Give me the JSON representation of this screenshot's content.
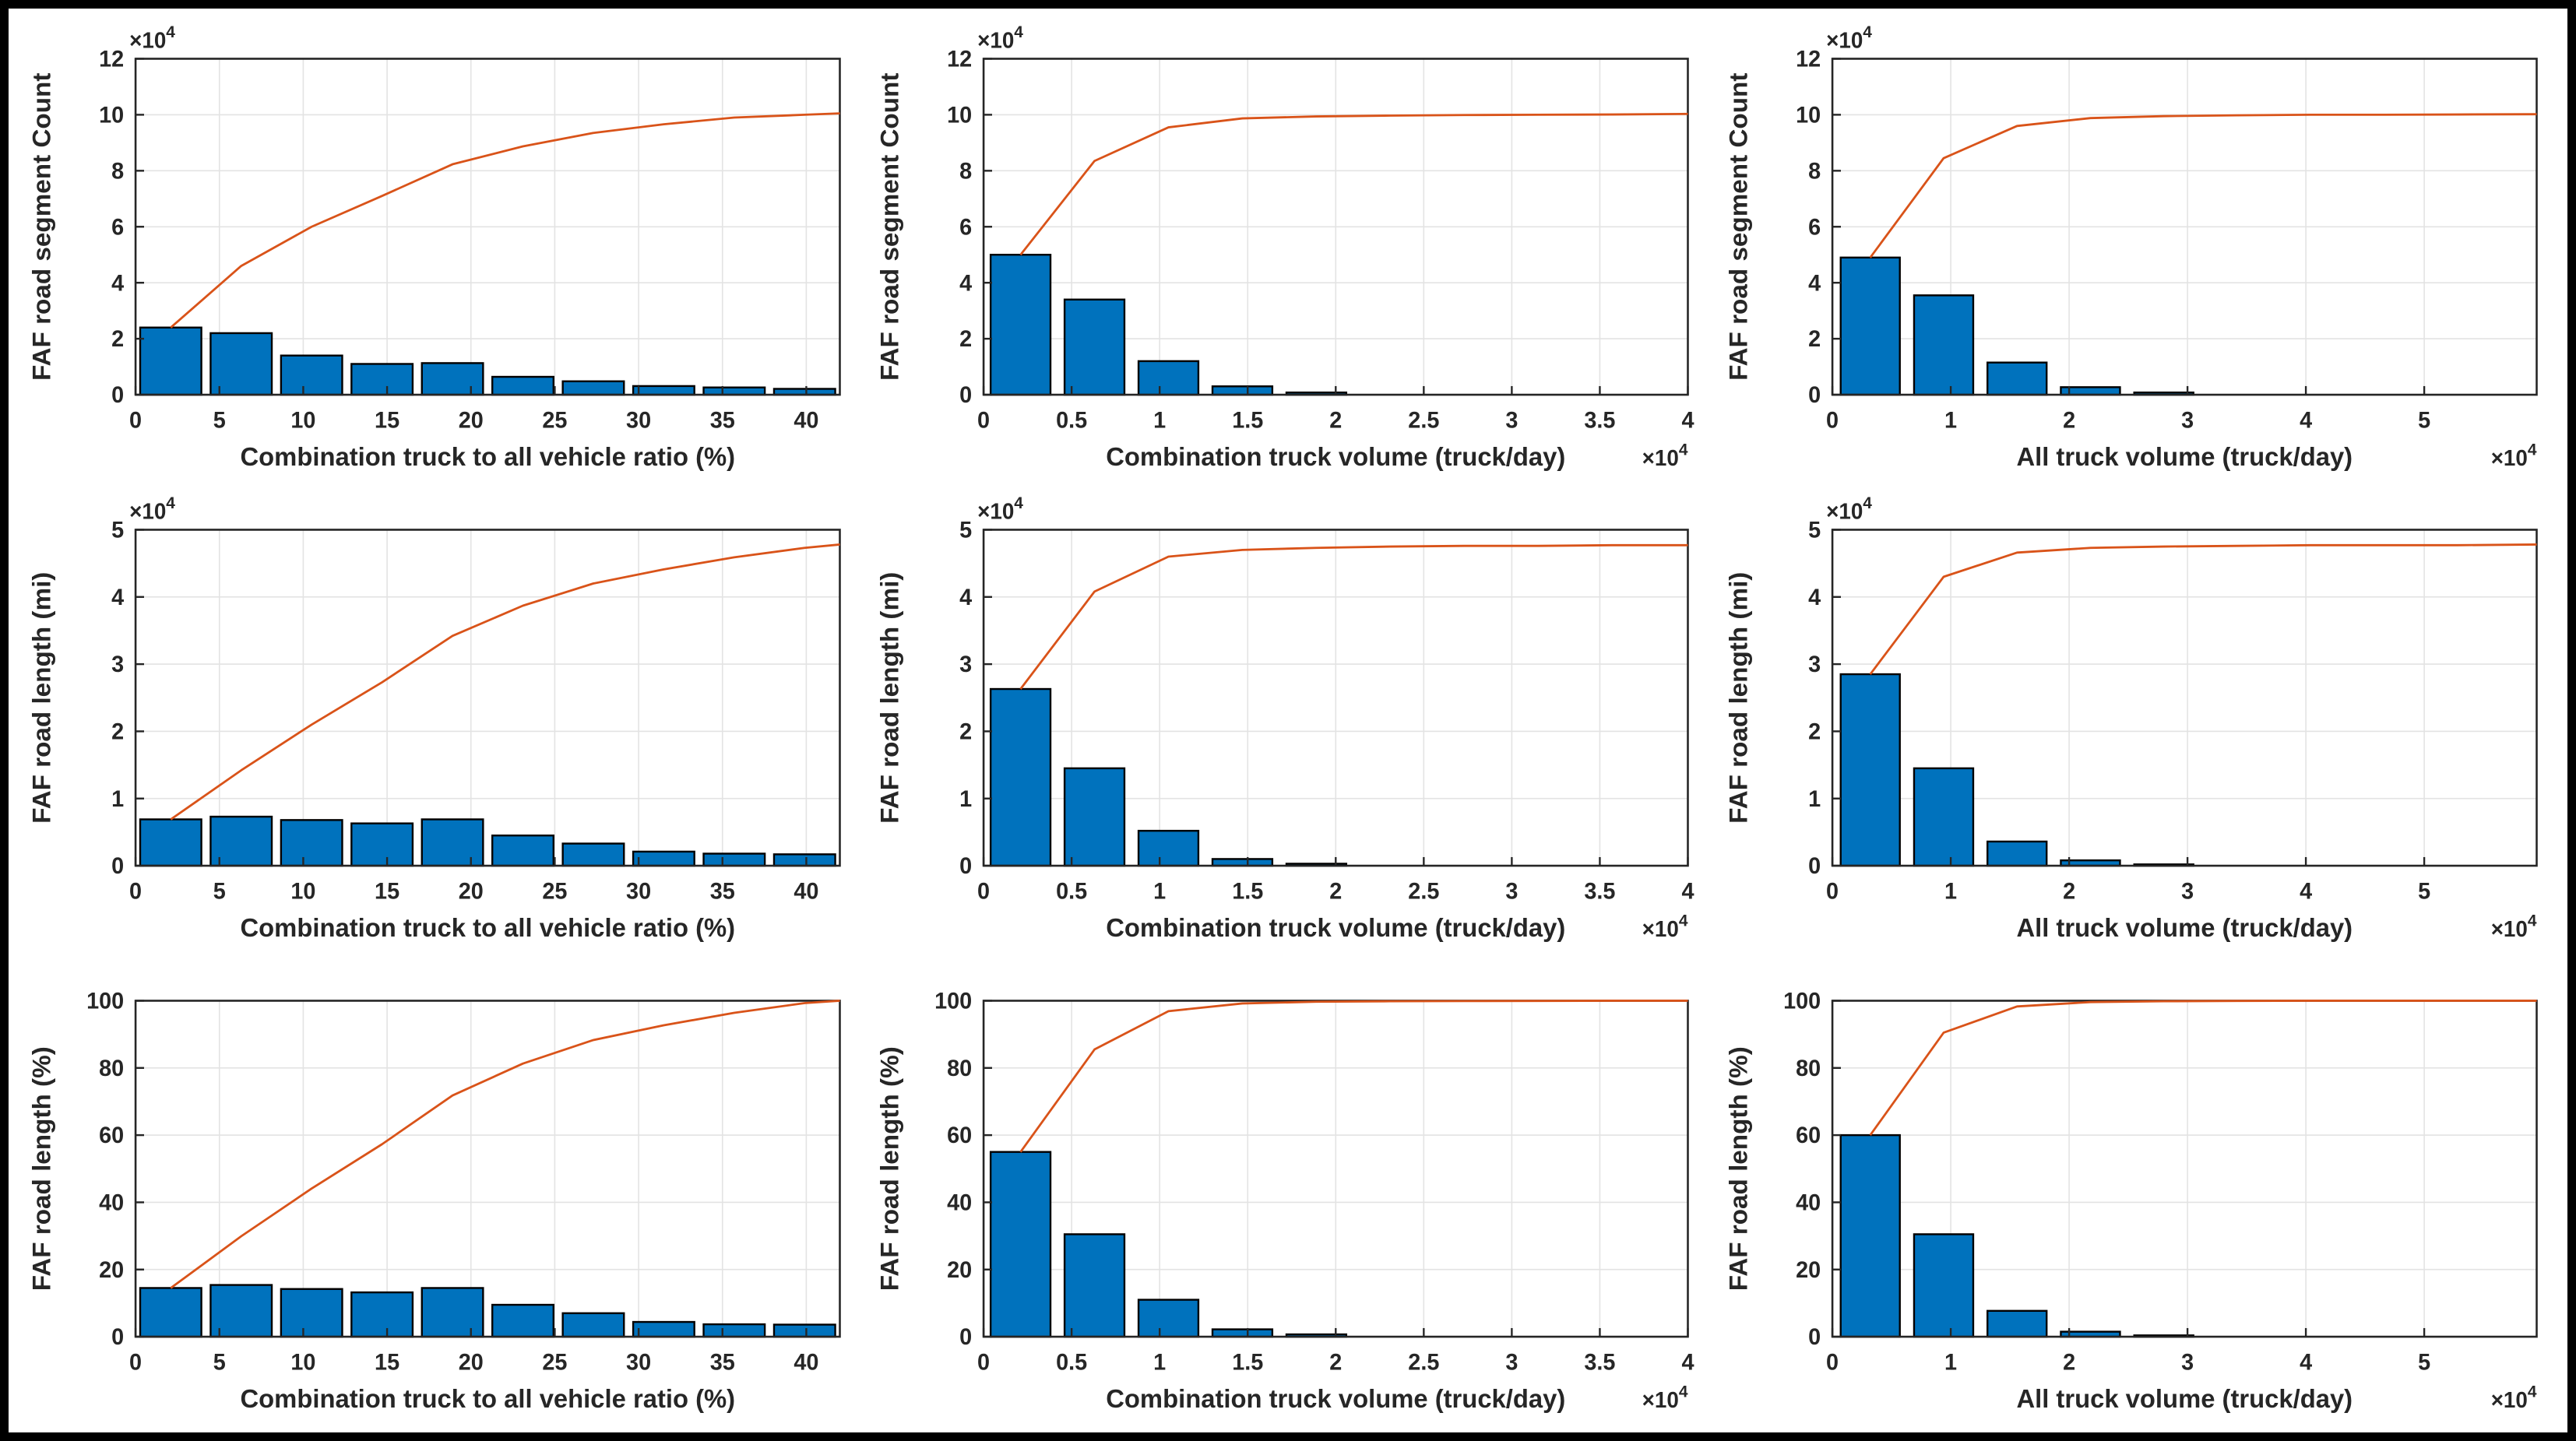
{
  "canvas": {
    "background": "#FFFFFF",
    "border_color": "#000000"
  },
  "palette": {
    "bar_fill": "#0072BD",
    "bar_edge": "#000000",
    "cumulative_line": "#D95319",
    "grid_color": "#E3E3E3",
    "axis_color": "#262626",
    "text_color": "#262626"
  },
  "chart_data": [
    {
      "type": "bar",
      "title": "",
      "xlabel": "Combination truck to all vehicle ratio (%)",
      "ylabel": "FAF road segment Count",
      "y_scale_exponent": 4,
      "x_scale_exponent": null,
      "xlim": [
        0,
        42
      ],
      "ylim": [
        0,
        12
      ],
      "xticks": [
        0,
        5,
        10,
        15,
        20,
        25,
        30,
        35,
        40
      ],
      "xtick_labels": [
        "0",
        "5",
        "10",
        "15",
        "20",
        "25",
        "30",
        "35",
        "40"
      ],
      "yticks": [
        0,
        2,
        4,
        6,
        8,
        10,
        12
      ],
      "ytick_labels": [
        "0",
        "2",
        "4",
        "6",
        "8",
        "10",
        "12"
      ],
      "grid": true,
      "legend_position": "none",
      "bar_width": 3.65,
      "bars": {
        "centers": [
          2.1,
          6.3,
          10.5,
          14.7,
          18.9,
          23.1,
          27.3,
          31.5,
          35.7,
          39.9
        ],
        "values": [
          2.4,
          2.2,
          1.4,
          1.1,
          1.13,
          0.64,
          0.48,
          0.31,
          0.26,
          0.21
        ]
      },
      "line": {
        "name": "cumulative",
        "x": [
          2.1,
          6.3,
          10.5,
          14.7,
          18.9,
          23.1,
          27.3,
          31.5,
          35.7,
          39.9,
          42
        ],
        "y": [
          2.4,
          4.6,
          6.0,
          7.1,
          8.23,
          8.87,
          9.35,
          9.66,
          9.9,
          10.0,
          10.05
        ]
      }
    },
    {
      "type": "bar",
      "title": "",
      "xlabel": "Combination truck volume (truck/day)",
      "ylabel": "FAF road segment Count",
      "y_scale_exponent": 4,
      "x_scale_exponent": 4,
      "xlim": [
        0,
        4
      ],
      "ylim": [
        0,
        12
      ],
      "xticks": [
        0,
        0.5,
        1,
        1.5,
        2,
        2.5,
        3,
        3.5,
        4
      ],
      "xtick_labels": [
        "0",
        "0.5",
        "1",
        "1.5",
        "2",
        "2.5",
        "3",
        "3.5",
        "4"
      ],
      "yticks": [
        0,
        2,
        4,
        6,
        8,
        10,
        12
      ],
      "ytick_labels": [
        "0",
        "2",
        "4",
        "6",
        "8",
        "10",
        "12"
      ],
      "grid": true,
      "legend_position": "none",
      "bar_width": 0.34,
      "bars": {
        "centers": [
          0.21,
          0.63,
          1.05,
          1.47,
          1.89
        ],
        "values": [
          5.0,
          3.4,
          1.2,
          0.3,
          0.08
        ]
      },
      "line": {
        "name": "cumulative",
        "x": [
          0.21,
          0.63,
          1.05,
          1.47,
          1.89,
          2.31,
          2.73,
          3.15,
          3.57,
          4.0
        ],
        "y": [
          5.0,
          8.35,
          9.55,
          9.87,
          9.94,
          9.97,
          9.99,
          10.0,
          10.01,
          10.03
        ]
      }
    },
    {
      "type": "bar",
      "title": "",
      "xlabel": "All truck volume (truck/day)",
      "ylabel": "FAF road segment Count",
      "y_scale_exponent": 4,
      "x_scale_exponent": 4,
      "xlim": [
        0,
        5.95
      ],
      "ylim": [
        0,
        12
      ],
      "xticks": [
        0,
        1,
        2,
        3,
        4,
        5
      ],
      "xtick_labels": [
        "0",
        "1",
        "2",
        "3",
        "4",
        "5"
      ],
      "yticks": [
        0,
        2,
        4,
        6,
        8,
        10,
        12
      ],
      "ytick_labels": [
        "0",
        "2",
        "4",
        "6",
        "8",
        "10",
        "12"
      ],
      "grid": true,
      "legend_position": "none",
      "bar_width": 0.5,
      "bars": {
        "centers": [
          0.32,
          0.94,
          1.56,
          2.18,
          2.8
        ],
        "values": [
          4.9,
          3.55,
          1.15,
          0.27,
          0.08
        ]
      },
      "line": {
        "name": "cumulative",
        "x": [
          0.32,
          0.94,
          1.56,
          2.18,
          2.8,
          3.42,
          4.04,
          4.66,
          5.28,
          5.95
        ],
        "y": [
          4.9,
          8.45,
          9.6,
          9.88,
          9.95,
          9.98,
          10.0,
          10.0,
          10.01,
          10.02
        ]
      }
    },
    {
      "type": "bar",
      "title": "",
      "xlabel": "Combination truck to all vehicle ratio (%)",
      "ylabel": "FAF road length (mi)",
      "y_scale_exponent": 4,
      "x_scale_exponent": null,
      "xlim": [
        0,
        42
      ],
      "ylim": [
        0,
        5
      ],
      "xticks": [
        0,
        5,
        10,
        15,
        20,
        25,
        30,
        35,
        40
      ],
      "xtick_labels": [
        "0",
        "5",
        "10",
        "15",
        "20",
        "25",
        "30",
        "35",
        "40"
      ],
      "yticks": [
        0,
        1,
        2,
        3,
        4,
        5
      ],
      "ytick_labels": [
        "0",
        "1",
        "2",
        "3",
        "4",
        "5"
      ],
      "grid": true,
      "legend_position": "none",
      "bar_width": 3.65,
      "bars": {
        "centers": [
          2.1,
          6.3,
          10.5,
          14.7,
          18.9,
          23.1,
          27.3,
          31.5,
          35.7,
          39.9
        ],
        "values": [
          0.69,
          0.73,
          0.68,
          0.63,
          0.69,
          0.45,
          0.33,
          0.21,
          0.18,
          0.17
        ]
      },
      "line": {
        "name": "cumulative",
        "x": [
          2.1,
          6.3,
          10.5,
          14.7,
          18.9,
          23.1,
          27.3,
          31.5,
          35.7,
          39.9,
          42
        ],
        "y": [
          0.69,
          1.42,
          2.1,
          2.73,
          3.42,
          3.87,
          4.2,
          4.41,
          4.59,
          4.73,
          4.78
        ]
      }
    },
    {
      "type": "bar",
      "title": "",
      "xlabel": "Combination truck volume (truck/day)",
      "ylabel": "FAF road length (mi)",
      "y_scale_exponent": 4,
      "x_scale_exponent": 4,
      "xlim": [
        0,
        4
      ],
      "ylim": [
        0,
        5
      ],
      "xticks": [
        0,
        0.5,
        1,
        1.5,
        2,
        2.5,
        3,
        3.5,
        4
      ],
      "xtick_labels": [
        "0",
        "0.5",
        "1",
        "1.5",
        "2",
        "2.5",
        "3",
        "3.5",
        "4"
      ],
      "yticks": [
        0,
        1,
        2,
        3,
        4,
        5
      ],
      "ytick_labels": [
        "0",
        "1",
        "2",
        "3",
        "4",
        "5"
      ],
      "grid": true,
      "legend_position": "none",
      "bar_width": 0.34,
      "bars": {
        "centers": [
          0.21,
          0.63,
          1.05,
          1.47,
          1.89
        ],
        "values": [
          2.63,
          1.45,
          0.52,
          0.1,
          0.03
        ]
      },
      "line": {
        "name": "cumulative",
        "x": [
          0.21,
          0.63,
          1.05,
          1.47,
          1.89,
          2.31,
          2.73,
          3.15,
          3.57,
          4.0
        ],
        "y": [
          2.63,
          4.08,
          4.6,
          4.7,
          4.73,
          4.75,
          4.76,
          4.76,
          4.77,
          4.77
        ]
      }
    },
    {
      "type": "bar",
      "title": "",
      "xlabel": "All truck volume (truck/day)",
      "ylabel": "FAF road length (mi)",
      "y_scale_exponent": 4,
      "x_scale_exponent": 4,
      "xlim": [
        0,
        5.95
      ],
      "ylim": [
        0,
        5
      ],
      "xticks": [
        0,
        1,
        2,
        3,
        4,
        5
      ],
      "xtick_labels": [
        "0",
        "1",
        "2",
        "3",
        "4",
        "5"
      ],
      "yticks": [
        0,
        1,
        2,
        3,
        4,
        5
      ],
      "ytick_labels": [
        "0",
        "1",
        "2",
        "3",
        "4",
        "5"
      ],
      "grid": true,
      "legend_position": "none",
      "bar_width": 0.5,
      "bars": {
        "centers": [
          0.32,
          0.94,
          1.56,
          2.18,
          2.8
        ],
        "values": [
          2.85,
          1.45,
          0.36,
          0.08,
          0.02
        ]
      },
      "line": {
        "name": "cumulative",
        "x": [
          0.32,
          0.94,
          1.56,
          2.18,
          2.8,
          3.42,
          4.04,
          4.66,
          5.28,
          5.95
        ],
        "y": [
          2.85,
          4.3,
          4.66,
          4.73,
          4.75,
          4.76,
          4.77,
          4.77,
          4.77,
          4.78
        ]
      }
    },
    {
      "type": "bar",
      "title": "",
      "xlabel": "Combination truck to all vehicle ratio (%)",
      "ylabel": "FAF road length (%)",
      "y_scale_exponent": null,
      "x_scale_exponent": null,
      "xlim": [
        0,
        42
      ],
      "ylim": [
        0,
        100
      ],
      "xticks": [
        0,
        5,
        10,
        15,
        20,
        25,
        30,
        35,
        40
      ],
      "xtick_labels": [
        "0",
        "5",
        "10",
        "15",
        "20",
        "25",
        "30",
        "35",
        "40"
      ],
      "yticks": [
        0,
        20,
        40,
        60,
        80,
        100
      ],
      "ytick_labels": [
        "0",
        "20",
        "40",
        "60",
        "80",
        "100"
      ],
      "grid": true,
      "legend_position": "none",
      "bar_width": 3.65,
      "bars": {
        "centers": [
          2.1,
          6.3,
          10.5,
          14.7,
          18.9,
          23.1,
          27.3,
          31.5,
          35.7,
          39.9
        ],
        "values": [
          14.5,
          15.4,
          14.2,
          13.2,
          14.5,
          9.5,
          7.0,
          4.4,
          3.7,
          3.6
        ]
      },
      "line": {
        "name": "cumulative",
        "x": [
          2.1,
          6.3,
          10.5,
          14.7,
          18.9,
          23.1,
          27.3,
          31.5,
          35.7,
          39.9,
          42
        ],
        "y": [
          14.5,
          29.9,
          44.1,
          57.3,
          71.8,
          81.3,
          88.3,
          92.7,
          96.4,
          99.3,
          100
        ]
      }
    },
    {
      "type": "bar",
      "title": "",
      "xlabel": "Combination truck volume (truck/day)",
      "ylabel": "FAF road length (%)",
      "y_scale_exponent": null,
      "x_scale_exponent": 4,
      "xlim": [
        0,
        4
      ],
      "ylim": [
        0,
        100
      ],
      "xticks": [
        0,
        0.5,
        1,
        1.5,
        2,
        2.5,
        3,
        3.5,
        4
      ],
      "xtick_labels": [
        "0",
        "0.5",
        "1",
        "1.5",
        "2",
        "2.5",
        "3",
        "3.5",
        "4"
      ],
      "yticks": [
        0,
        20,
        40,
        60,
        80,
        100
      ],
      "ytick_labels": [
        "0",
        "20",
        "40",
        "60",
        "80",
        "100"
      ],
      "grid": true,
      "legend_position": "none",
      "bar_width": 0.34,
      "bars": {
        "centers": [
          0.21,
          0.63,
          1.05,
          1.47,
          1.89
        ],
        "values": [
          55,
          30.5,
          11,
          2.2,
          0.7
        ]
      },
      "line": {
        "name": "cumulative",
        "x": [
          0.21,
          0.63,
          1.05,
          1.47,
          1.89,
          2.31,
          2.73,
          3.15,
          3.57,
          4.0
        ],
        "y": [
          55,
          85.5,
          96.9,
          99.2,
          99.7,
          99.85,
          99.9,
          99.95,
          100,
          100
        ]
      }
    },
    {
      "type": "bar",
      "title": "",
      "xlabel": "All truck volume (truck/day)",
      "ylabel": "FAF road length (%)",
      "y_scale_exponent": null,
      "x_scale_exponent": 4,
      "xlim": [
        0,
        5.95
      ],
      "ylim": [
        0,
        100
      ],
      "xticks": [
        0,
        1,
        2,
        3,
        4,
        5
      ],
      "xtick_labels": [
        "0",
        "1",
        "2",
        "3",
        "4",
        "5"
      ],
      "yticks": [
        0,
        20,
        40,
        60,
        80,
        100
      ],
      "ytick_labels": [
        "0",
        "20",
        "40",
        "60",
        "80",
        "100"
      ],
      "grid": true,
      "legend_position": "none",
      "bar_width": 0.5,
      "bars": {
        "centers": [
          0.32,
          0.94,
          1.56,
          2.18,
          2.8
        ],
        "values": [
          60,
          30.5,
          7.7,
          1.5,
          0.4
        ]
      },
      "line": {
        "name": "cumulative",
        "x": [
          0.32,
          0.94,
          1.56,
          2.18,
          2.8,
          3.42,
          4.04,
          4.66,
          5.28,
          5.95
        ],
        "y": [
          60,
          90.5,
          98.3,
          99.6,
          99.85,
          99.95,
          100,
          100,
          100,
          100
        ]
      }
    }
  ]
}
